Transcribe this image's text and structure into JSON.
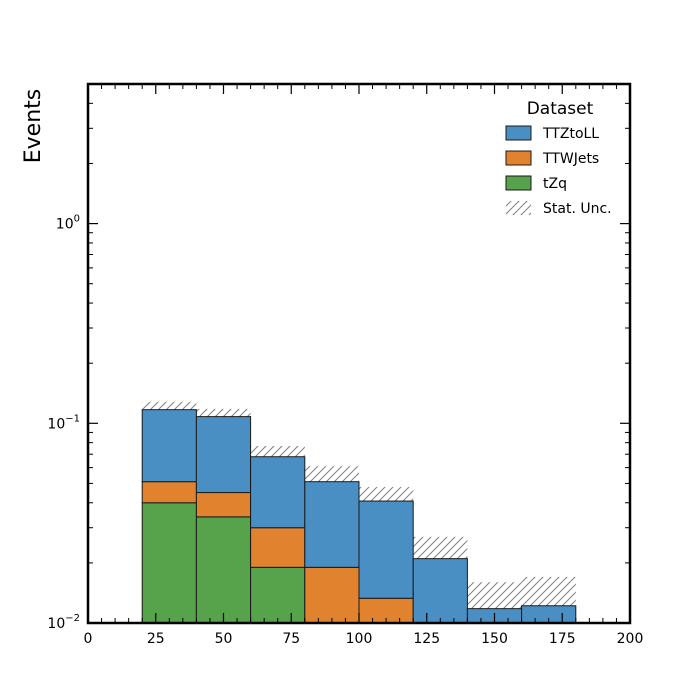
{
  "chart_data": {
    "type": "bar",
    "stacked": true,
    "histogram": true,
    "ylabel": "Events",
    "xlabel": "",
    "xlim": [
      0,
      200
    ],
    "ylim": [
      0.01,
      5
    ],
    "yscale": "log",
    "x_ticks": [
      0,
      25,
      50,
      75,
      100,
      125,
      150,
      175,
      200
    ],
    "y_ticks": [
      {
        "value": 0.01,
        "base": "10",
        "exp": "−2"
      },
      {
        "value": 0.1,
        "base": "10",
        "exp": "−1"
      },
      {
        "value": 1,
        "base": "10",
        "exp": "0"
      }
    ],
    "bin_edges": [
      20,
      40,
      60,
      80,
      100,
      120,
      140,
      160,
      180
    ],
    "series": [
      {
        "name": "tZq",
        "color": "#56a34c",
        "values": [
          0.04,
          0.034,
          0.019,
          0,
          0,
          0,
          0,
          0
        ]
      },
      {
        "name": "TTWJets",
        "color": "#e1822f",
        "values": [
          0.011,
          0.011,
          0.011,
          0.019,
          0.0133,
          0,
          0,
          0
        ]
      },
      {
        "name": "TTZtoLL",
        "color": "#4a8fc3",
        "values": [
          0.066,
          0.063,
          0.038,
          0.032,
          0.0275,
          0.021,
          0.0118,
          0.0122
        ]
      }
    ],
    "stat_unc": {
      "upper": [
        0.128,
        0.118,
        0.077,
        0.061,
        0.048,
        0.027,
        0.016,
        0.017
      ],
      "lower": [
        0.111,
        0.102,
        0.066,
        0.048,
        0.037,
        0.017,
        0.01,
        0.01
      ]
    },
    "legend": {
      "title": "Dataset",
      "position": "top-right",
      "entries": [
        {
          "label": "TTZtoLL",
          "color": "#4a8fc3",
          "kind": "fill"
        },
        {
          "label": "TTWJets",
          "color": "#e1822f",
          "kind": "fill"
        },
        {
          "label": "tZq",
          "color": "#56a34c",
          "kind": "fill"
        },
        {
          "label": "Stat. Unc.",
          "color": "#808080",
          "kind": "hatch"
        }
      ]
    }
  }
}
